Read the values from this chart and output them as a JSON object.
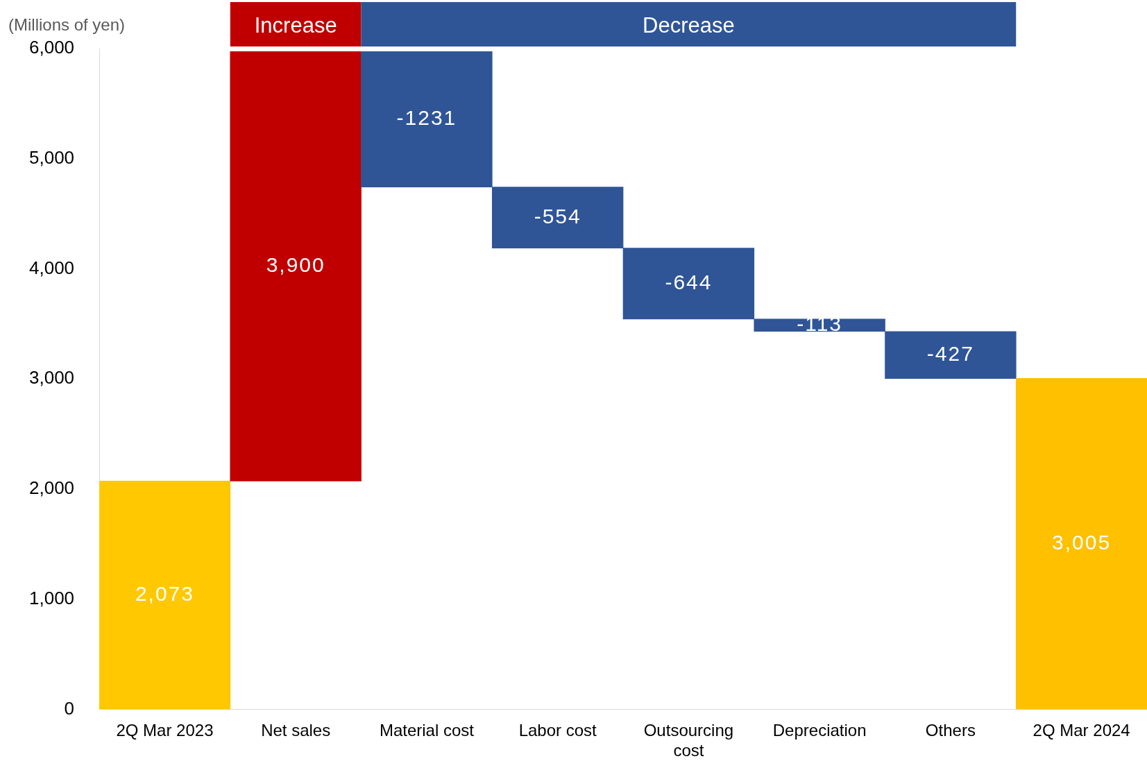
{
  "chart_data": {
    "type": "bar",
    "ylabel": "(Millions of yen)",
    "categories": [
      "2Q Mar 2023",
      "Net sales",
      "Material cost",
      "Labor cost",
      "Outsourcing cost",
      "Depreciation",
      "Others",
      "2Q Mar 2024"
    ],
    "values": [
      2073,
      3900,
      -1231,
      -554,
      -644,
      -113,
      -427,
      3005
    ],
    "base": [
      0,
      2073,
      5973,
      4742,
      4188,
      3544,
      3431,
      0
    ],
    "colors": [
      "#ffc800",
      "#c00000",
      "#2f5597",
      "#2f5597",
      "#2f5597",
      "#2f5597",
      "#2f5597",
      "#ffc000"
    ],
    "value_labels": [
      "2,073",
      "3,900",
      "-1231",
      "-554",
      "-644",
      "-113",
      "-427",
      "3,005"
    ],
    "ylim": [
      0,
      6000
    ],
    "yticks": [
      0,
      {
        "value": 1000,
        "label": "1,000"
      },
      {
        "value": 2000,
        "label": "2,000"
      },
      {
        "value": 3000,
        "label": "3,000"
      },
      {
        "value": 4000,
        "label": "4,000"
      },
      {
        "value": 5000,
        "label": "5,000"
      },
      {
        "value": 6000,
        "label": "6,000"
      }
    ],
    "grid": false,
    "legend": false,
    "annotations": [
      "Increase",
      "Decrease"
    ]
  }
}
